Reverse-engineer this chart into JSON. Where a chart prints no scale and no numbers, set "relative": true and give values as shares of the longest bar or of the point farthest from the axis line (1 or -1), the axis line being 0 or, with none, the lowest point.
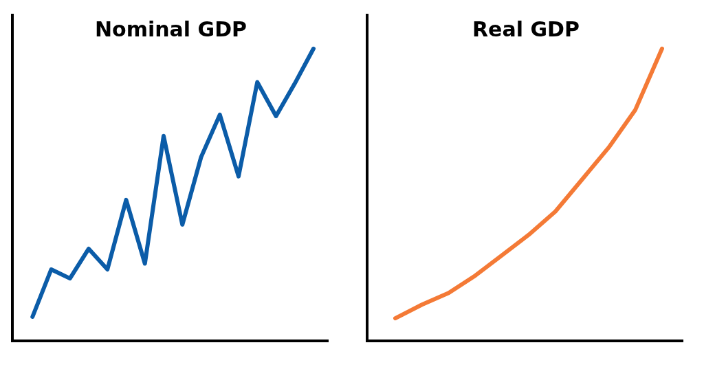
{
  "chart_data": [
    {
      "type": "line",
      "title": "Nominal GDP",
      "relative": true,
      "categories": [
        null,
        null,
        null,
        null,
        null,
        null,
        null,
        null,
        null,
        null,
        null,
        null,
        null,
        null,
        null,
        null
      ],
      "series": [
        {
          "color": "#0b5ca8",
          "values": [
            0.078,
            0.241,
            0.21,
            0.312,
            0.241,
            0.48,
            0.261,
            0.7,
            0.395,
            0.627,
            0.773,
            0.561,
            0.885,
            0.768,
            0.88,
            1
          ]
        }
      ]
    },
    {
      "type": "line",
      "title": "Real GDP",
      "relative": true,
      "categories": [
        null,
        null,
        null,
        null,
        null,
        null,
        null,
        null,
        null,
        null,
        null
      ],
      "series": [
        {
          "color": "#f47a36",
          "values": [
            0.073,
            0.12,
            0.16,
            0.22,
            0.29,
            0.36,
            0.44,
            0.55,
            0.66,
            0.79,
            1
          ]
        }
      ]
    }
  ]
}
